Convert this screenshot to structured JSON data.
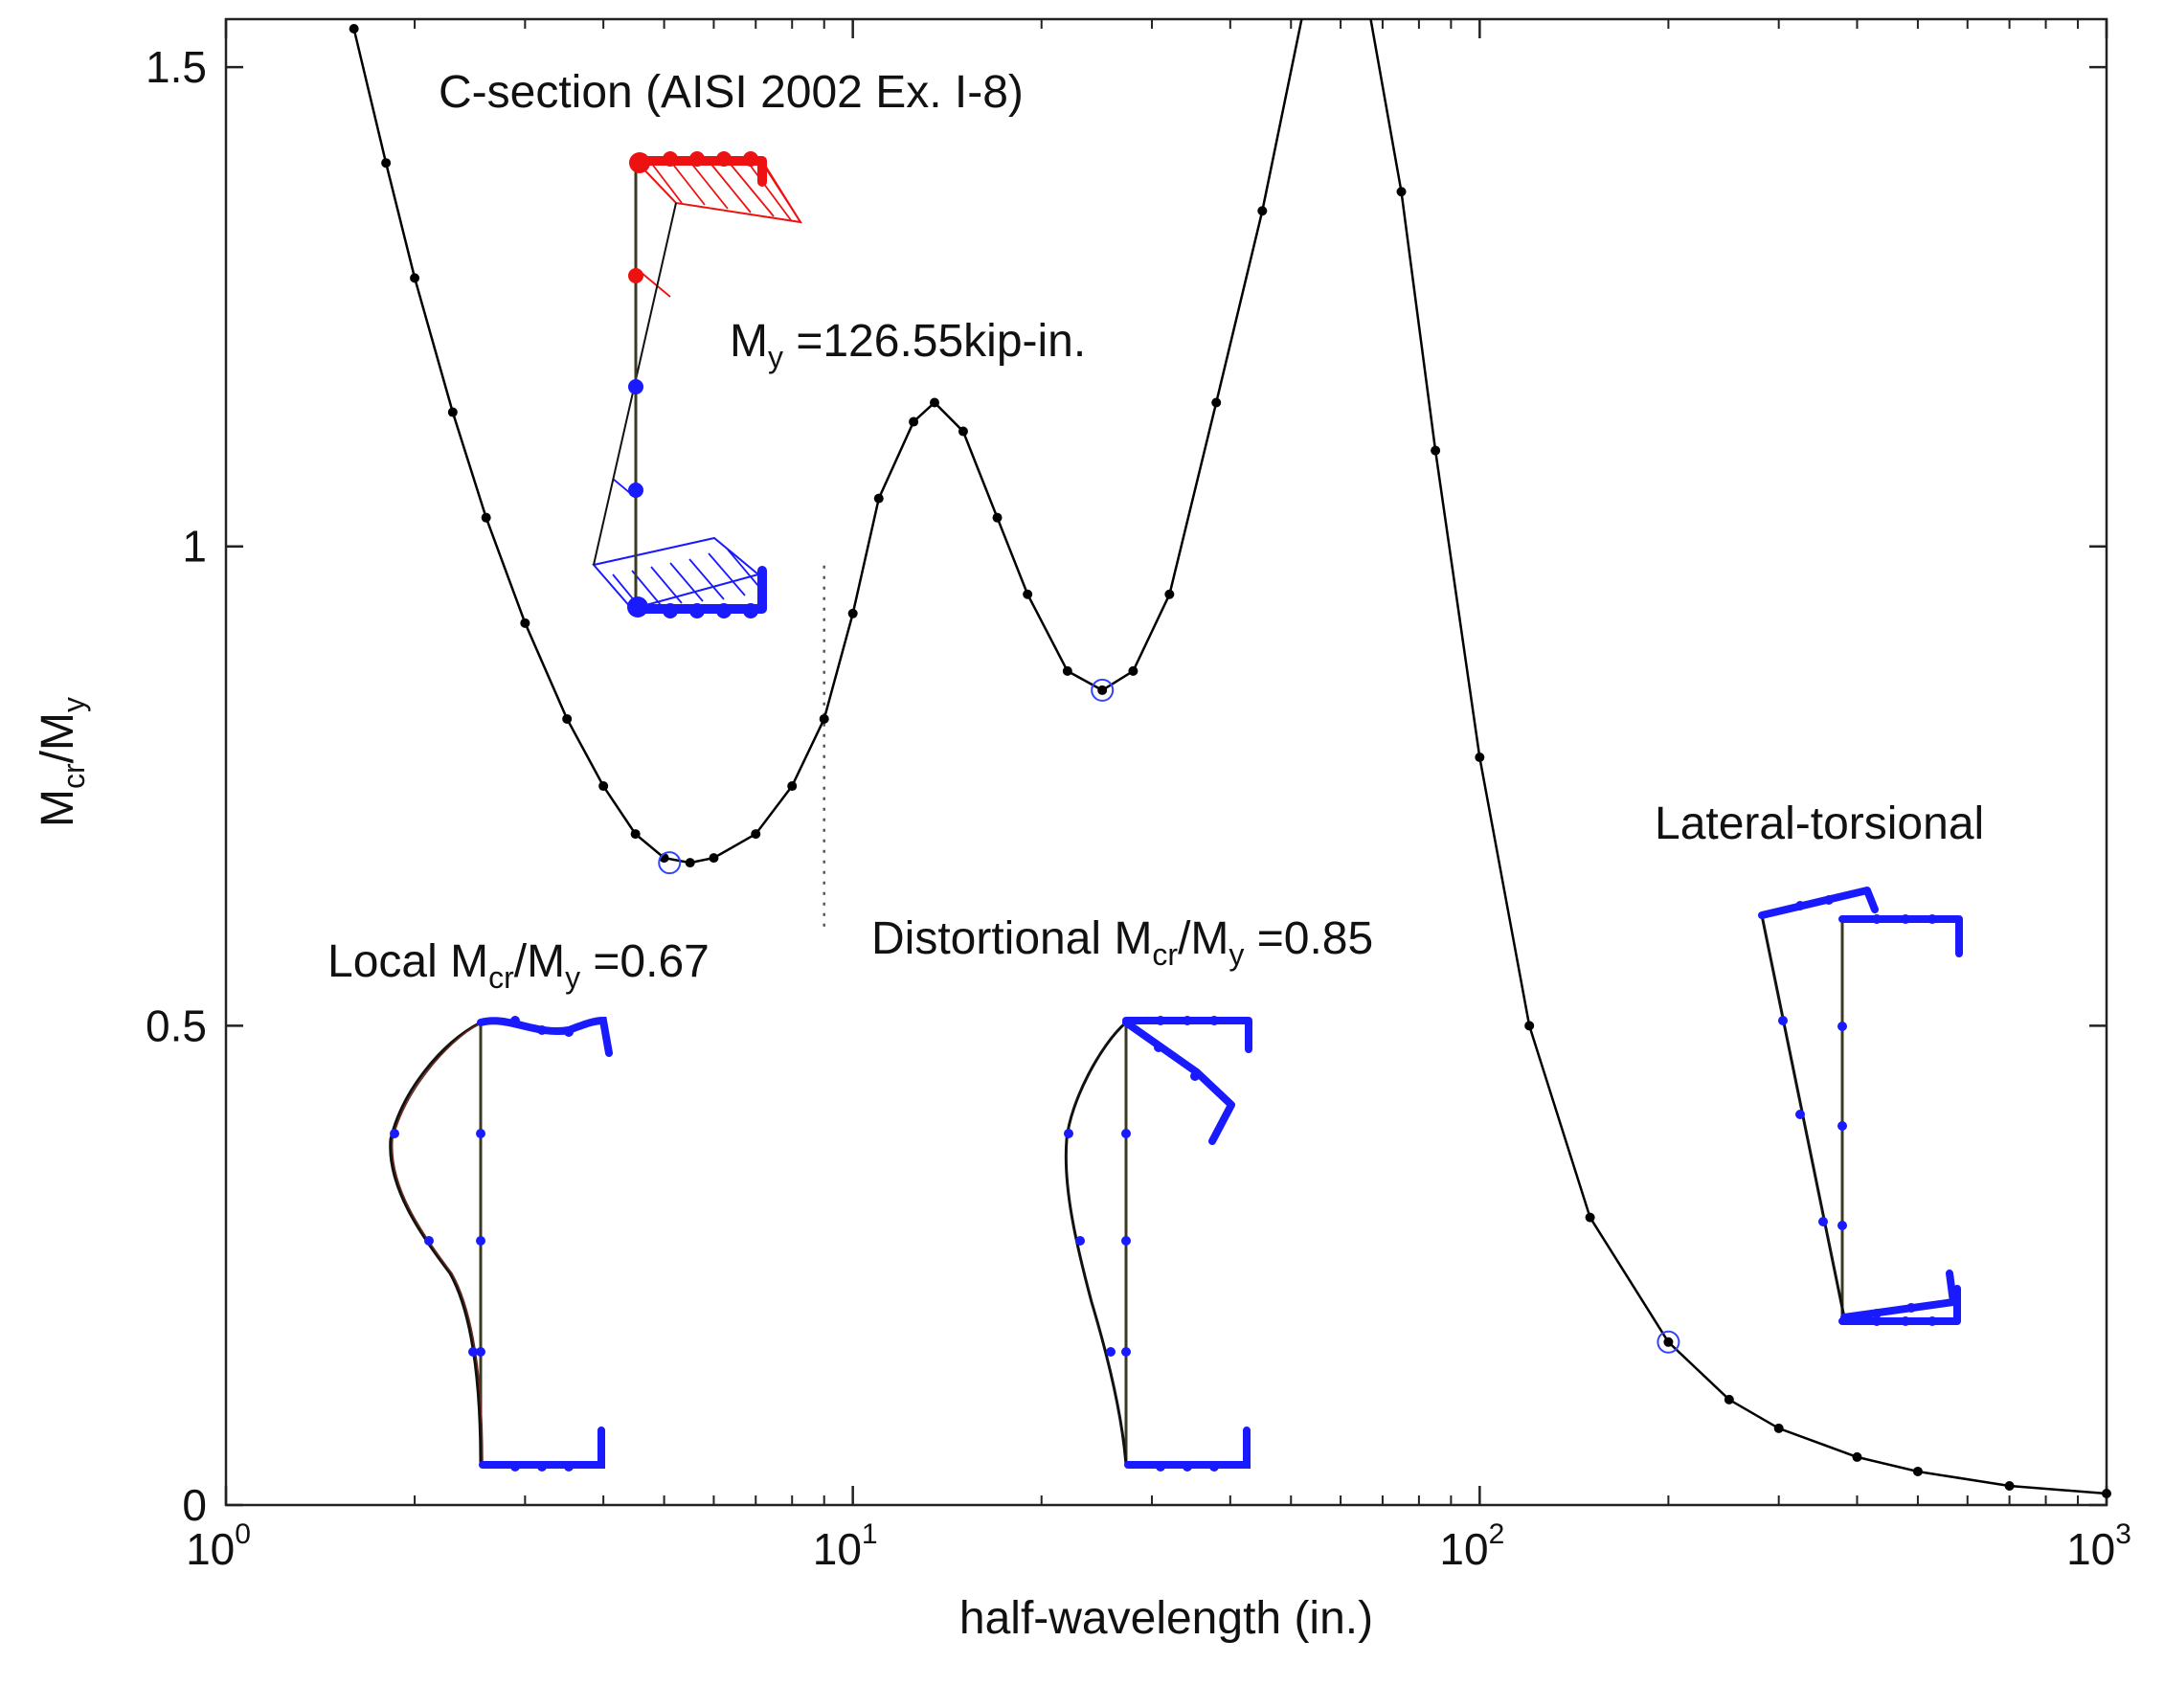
{
  "chart_data": {
    "type": "line",
    "xscale": "log",
    "xlim": [
      1,
      1000
    ],
    "ylim": [
      0,
      1.55
    ],
    "xlabel": "half-wavelength (in.)",
    "ylabel": {
      "base": "M",
      "sub1": "cr",
      "mid": "/M",
      "sub2": "y"
    },
    "x_ticks": [
      {
        "value": 1,
        "base": "10",
        "exp": "0"
      },
      {
        "value": 10,
        "base": "10",
        "exp": "1"
      },
      {
        "value": 100,
        "base": "10",
        "exp": "2"
      },
      {
        "value": 1000,
        "base": "10",
        "exp": "3"
      }
    ],
    "y_ticks": [
      {
        "value": 0,
        "label": "0"
      },
      {
        "value": 0.5,
        "label": "0.5"
      },
      {
        "value": 1,
        "label": "1"
      },
      {
        "value": 1.5,
        "label": "1.5"
      }
    ],
    "series": [
      {
        "name": "Mcr/My",
        "color": "#000000",
        "points": [
          [
            1.6,
            1.54
          ],
          [
            1.8,
            1.4
          ],
          [
            2.0,
            1.28
          ],
          [
            2.3,
            1.14
          ],
          [
            2.6,
            1.03
          ],
          [
            3.0,
            0.92
          ],
          [
            3.5,
            0.82
          ],
          [
            4.0,
            0.75
          ],
          [
            4.5,
            0.7
          ],
          [
            5.0,
            0.675
          ],
          [
            5.5,
            0.67
          ],
          [
            6.0,
            0.675
          ],
          [
            7.0,
            0.7
          ],
          [
            8.0,
            0.75
          ],
          [
            9.0,
            0.82
          ],
          [
            10.0,
            0.93
          ],
          [
            11.0,
            1.05
          ],
          [
            12.5,
            1.13
          ],
          [
            13.5,
            1.15
          ],
          [
            15.0,
            1.12
          ],
          [
            17.0,
            1.03
          ],
          [
            19.0,
            0.95
          ],
          [
            22.0,
            0.87
          ],
          [
            25.0,
            0.85
          ],
          [
            28.0,
            0.87
          ],
          [
            32.0,
            0.95
          ],
          [
            38.0,
            1.15
          ],
          [
            45.0,
            1.35
          ],
          [
            52.0,
            1.55
          ],
          [
            67.0,
            1.55
          ],
          [
            75.0,
            1.37
          ],
          [
            85.0,
            1.1
          ],
          [
            100.0,
            0.78
          ],
          [
            120.0,
            0.5
          ],
          [
            150.0,
            0.3
          ],
          [
            200.0,
            0.17
          ],
          [
            250.0,
            0.11
          ],
          [
            300.0,
            0.08
          ],
          [
            400.0,
            0.05
          ],
          [
            500.0,
            0.035
          ],
          [
            700.0,
            0.02
          ],
          [
            1000.0,
            0.012
          ]
        ]
      }
    ],
    "minima": [
      {
        "x": 5.1,
        "y": 0.67
      },
      {
        "x": 25.0,
        "y": 0.85
      },
      {
        "x": 200.0,
        "y": 0.17
      }
    ],
    "separator_x": 9.0,
    "annotations": {
      "section_title": "C-section (AISI 2002 Ex. I-8)",
      "my_value": {
        "base": "M",
        "sub": "y",
        "text": " =126.55kip-in."
      },
      "local": {
        "prefix": "Local ",
        "base": "M",
        "sub1": "cr",
        "mid": "/M",
        "sub2": "y",
        "value": " =0.67"
      },
      "distortional": {
        "prefix": "Distortional ",
        "base": "M",
        "sub1": "cr",
        "mid": "/M",
        "sub2": "y",
        "value": " =0.85"
      },
      "lateral": "Lateral-torsional"
    },
    "colors": {
      "curve": "#000000",
      "marker_circle": "#3344ff",
      "compression": "#ee1111",
      "tension": "#1a1aff",
      "mode_shape": "#1a1aff",
      "shape_line": "#6b2a1a"
    }
  }
}
